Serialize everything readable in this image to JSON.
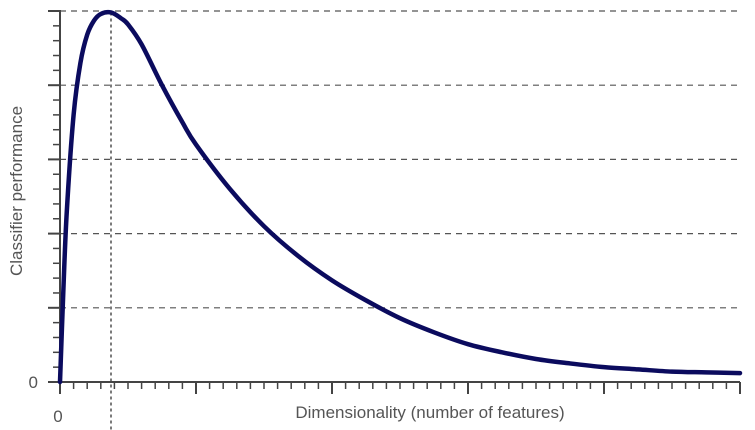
{
  "chart_data": {
    "type": "line",
    "title": "",
    "xlabel": "Dimensionality (number of features)",
    "ylabel": "Classifier performance",
    "x_tick_labels": [
      "0"
    ],
    "y_tick_labels": [
      "0"
    ],
    "xlim": [
      0,
      10
    ],
    "ylim": [
      0,
      5
    ],
    "grid": "horizontal dashed",
    "optimum_marker": {
      "x": 0.75,
      "style": "vertical dotted line"
    },
    "colors": {
      "curve": "#0b0b5e",
      "axis": "#444444",
      "grid": "#555555",
      "text": "#555555"
    },
    "series": [
      {
        "x": [
          0,
          0.05,
          0.1,
          0.2,
          0.3,
          0.4,
          0.5,
          0.6,
          0.75,
          0.9,
          1.0,
          1.2,
          1.5,
          1.8,
          2.0,
          2.5,
          3.0,
          3.5,
          4.0,
          4.5,
          5.0,
          5.5,
          6.0,
          6.5,
          7.0,
          7.5,
          8.0,
          8.5,
          9.0,
          9.5,
          10.0
        ],
        "y": [
          0,
          1.25,
          2.3,
          3.6,
          4.3,
          4.68,
          4.87,
          4.96,
          4.98,
          4.9,
          4.82,
          4.55,
          4.0,
          3.5,
          3.2,
          2.6,
          2.1,
          1.7,
          1.37,
          1.1,
          0.86,
          0.67,
          0.51,
          0.4,
          0.31,
          0.25,
          0.2,
          0.17,
          0.14,
          0.13,
          0.12
        ]
      }
    ]
  }
}
